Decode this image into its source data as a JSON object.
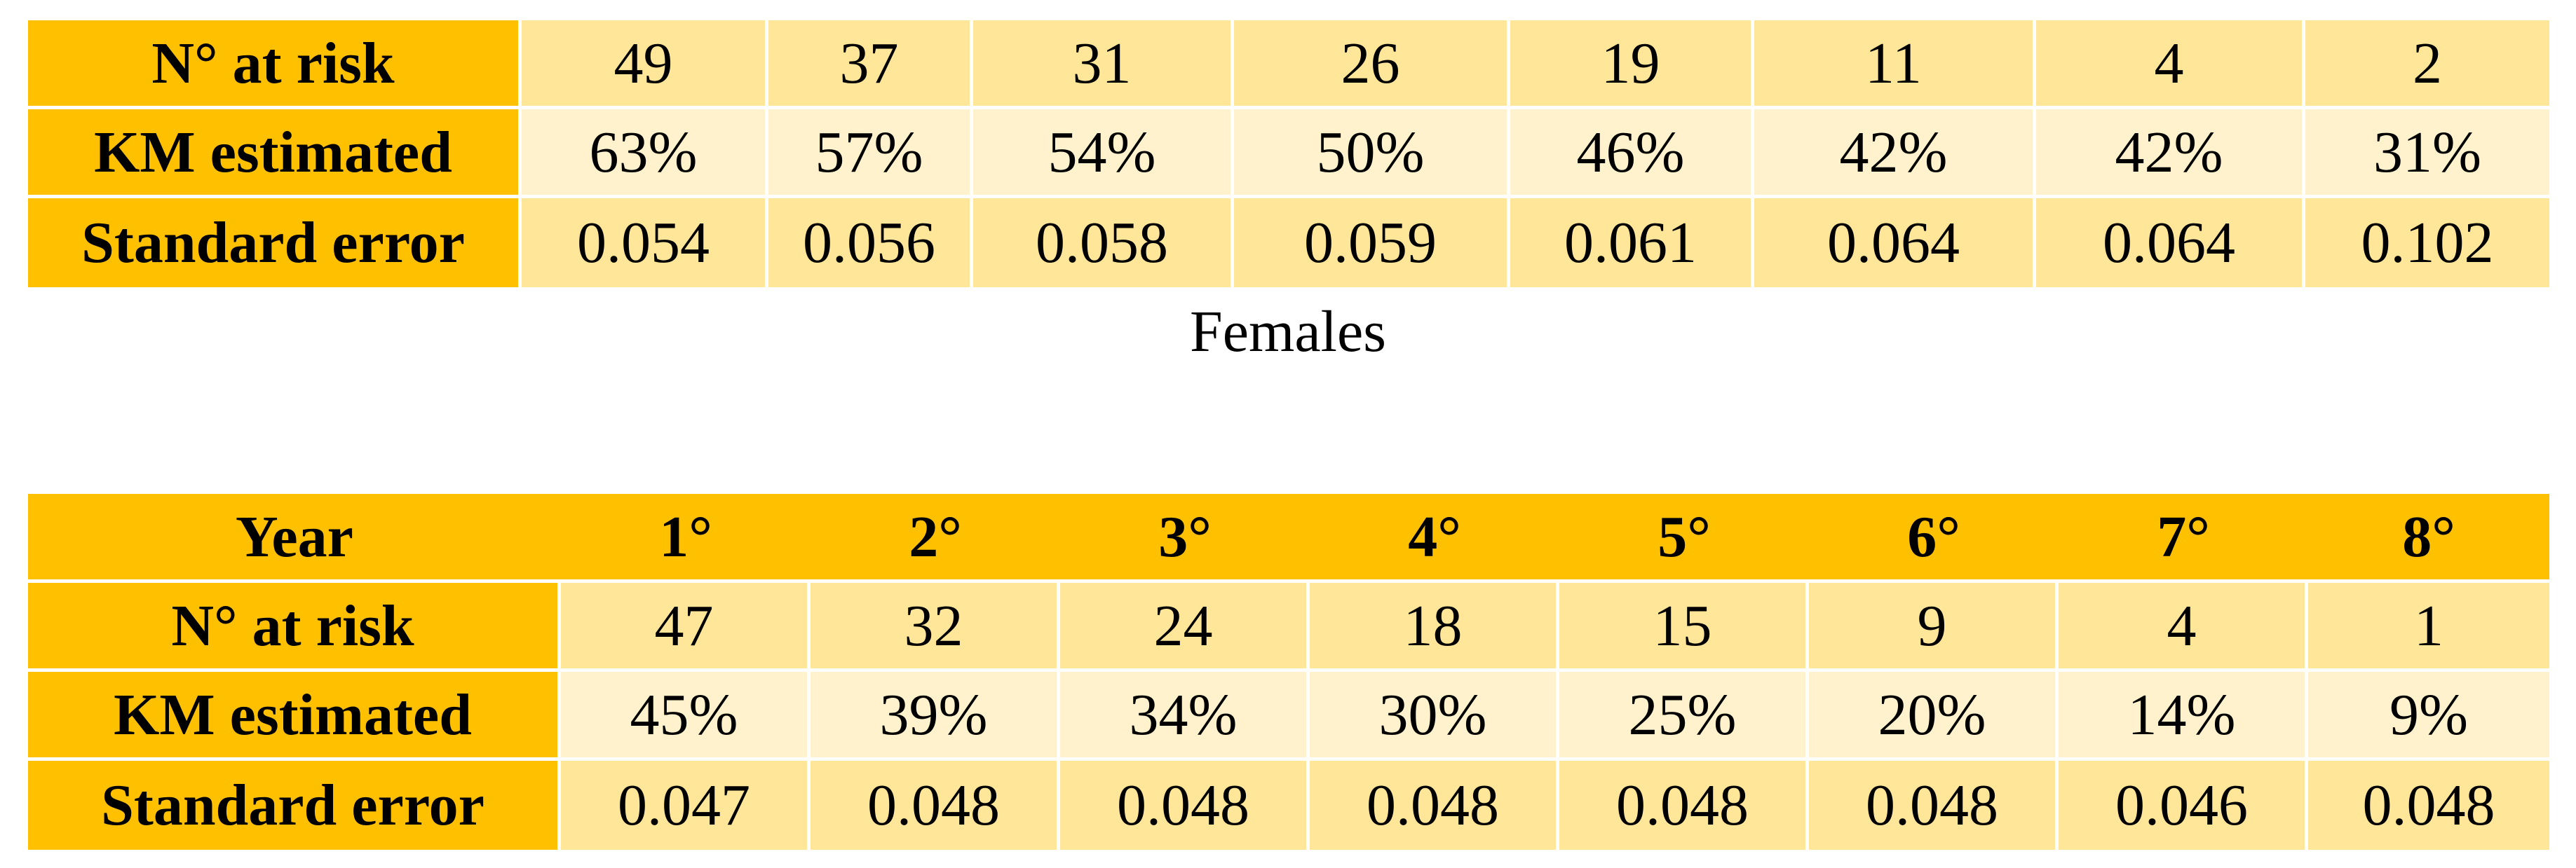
{
  "top_table": {
    "rows": [
      {
        "label": "N° at risk",
        "values": [
          "49",
          "37",
          "31",
          "26",
          "19",
          "11",
          "4",
          "2"
        ]
      },
      {
        "label": "KM estimated",
        "values": [
          "63%",
          "57%",
          "54%",
          "50%",
          "46%",
          "42%",
          "42%",
          "31%"
        ]
      },
      {
        "label": "Standard error",
        "values": [
          "0.054",
          "0.056",
          "0.058",
          "0.059",
          "0.061",
          "0.064",
          "0.064",
          "0.102"
        ]
      }
    ]
  },
  "caption": "Females",
  "bottom_table": {
    "year_label": "Year",
    "years": [
      "1°",
      "2°",
      "3°",
      "4°",
      "5°",
      "6°",
      "7°",
      "8°"
    ],
    "rows": [
      {
        "label": "N° at risk",
        "values": [
          "47",
          "32",
          "24",
          "18",
          "15",
          "9",
          "4",
          "1"
        ]
      },
      {
        "label": "KM estimated",
        "values": [
          "45%",
          "39%",
          "34%",
          "30%",
          "25%",
          "20%",
          "14%",
          "9%"
        ]
      },
      {
        "label": "Standard error",
        "values": [
          "0.047",
          "0.048",
          "0.048",
          "0.048",
          "0.048",
          "0.048",
          "0.046",
          "0.048"
        ]
      }
    ]
  },
  "colors": {
    "header": "#FFC000",
    "cell_dark": "#FFE699",
    "cell_light": "#FFF2CC"
  }
}
